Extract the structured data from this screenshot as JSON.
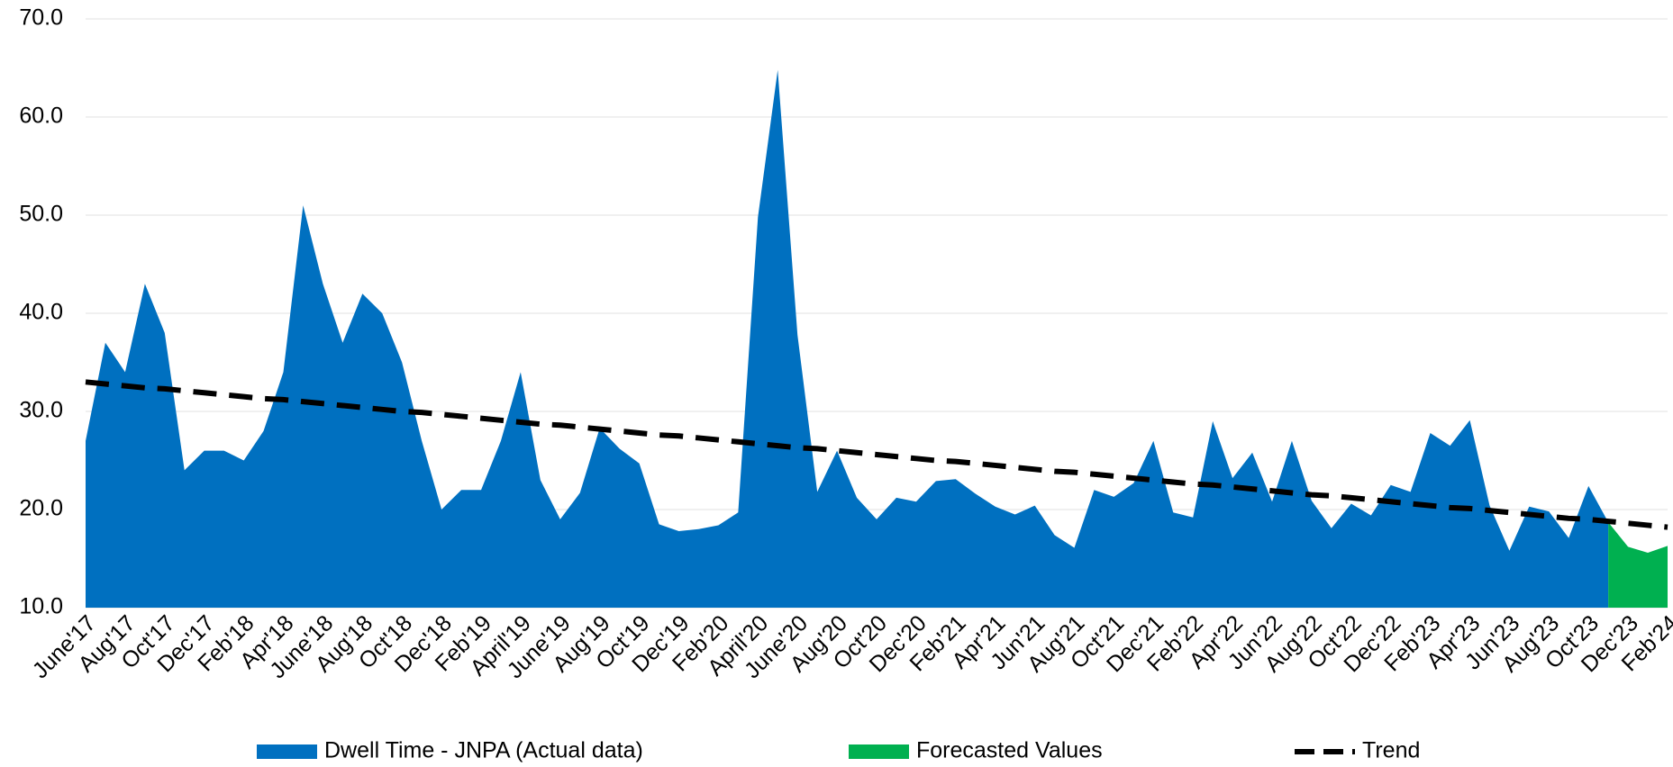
{
  "chart_data": {
    "type": "area",
    "categories": [
      "June'17",
      null,
      "Aug'17",
      null,
      "Oct'17",
      null,
      "Dec'17",
      null,
      "Feb'18",
      null,
      "Apr'18",
      null,
      "June'18",
      null,
      "Aug'18",
      null,
      "Oct'18",
      null,
      "Dec'18",
      null,
      "Feb'19",
      null,
      "April'19",
      null,
      "June'19",
      null,
      "Aug'19",
      null,
      "Oct'19",
      null,
      "Dec'19",
      null,
      "Feb'20",
      null,
      "April'20",
      null,
      "June'20",
      null,
      "Aug'20",
      null,
      "Oct'20",
      null,
      "Dec'20",
      null,
      "Feb'21",
      null,
      "Apr'21",
      null,
      "Jun'21",
      null,
      "Aug'21",
      null,
      "Oct'21",
      null,
      "Dec'21",
      null,
      "Feb'22",
      null,
      "Apr'22",
      null,
      "Jun'22",
      null,
      "Aug'22",
      null,
      "Oct'22",
      null,
      "Dec'22",
      null,
      "Feb'23",
      null,
      "Apr'23",
      null,
      "Jun'23",
      null,
      "Aug'23",
      null,
      "Oct'23",
      null,
      "Dec'23",
      null,
      "Feb'24"
    ],
    "series": [
      {
        "name": "Dwell Time - JNPA (Actual data)",
        "color": "#0070c0",
        "values": [
          27,
          37,
          34,
          43,
          38,
          24,
          26,
          26,
          25,
          28,
          34,
          51,
          43,
          37,
          42,
          40,
          35,
          27,
          20,
          22,
          22,
          27,
          34,
          23,
          19,
          21.7,
          28.3,
          26.2,
          24.7,
          18.5,
          17.8,
          18,
          18.4,
          19.7,
          49.8,
          64.8,
          37.8,
          21.8,
          26,
          21.2,
          19,
          21.2,
          20.8,
          22.9,
          23.1,
          21.6,
          20.3,
          19.5,
          20.4,
          17.4,
          16.1,
          22,
          21.3,
          22.7,
          27,
          19.7,
          19.2,
          29,
          23.2,
          25.8,
          20.8,
          27,
          20.9,
          18.1,
          20.6,
          19.4,
          22.5,
          21.8,
          27.8,
          26.5,
          29.1,
          20.4,
          15.8,
          20.3,
          19.8,
          17.1,
          22.4,
          18.7,
          null,
          null,
          null
        ]
      },
      {
        "name": "Forecasted Values",
        "color": "#00b050",
        "values": [
          null,
          null,
          null,
          null,
          null,
          null,
          null,
          null,
          null,
          null,
          null,
          null,
          null,
          null,
          null,
          null,
          null,
          null,
          null,
          null,
          null,
          null,
          null,
          null,
          null,
          null,
          null,
          null,
          null,
          null,
          null,
          null,
          null,
          null,
          null,
          null,
          null,
          null,
          null,
          null,
          null,
          null,
          null,
          null,
          null,
          null,
          null,
          null,
          null,
          null,
          null,
          null,
          null,
          null,
          null,
          null,
          null,
          null,
          null,
          null,
          null,
          null,
          null,
          null,
          null,
          null,
          null,
          null,
          null,
          null,
          null,
          null,
          null,
          null,
          null,
          null,
          null,
          18.7,
          16.2,
          15.6,
          16.3
        ]
      },
      {
        "name": "Trend",
        "color": "#000000",
        "line": "dashed",
        "values": [
          33.0,
          32.8,
          32.6,
          32.4,
          32.3,
          32.1,
          31.9,
          31.7,
          31.5,
          31.3,
          31.2,
          31.0,
          30.8,
          30.6,
          30.4,
          30.2,
          30.0,
          29.9,
          29.7,
          29.5,
          29.3,
          29.1,
          28.9,
          28.7,
          28.6,
          28.4,
          28.2,
          28.0,
          27.8,
          27.6,
          27.5,
          27.3,
          27.1,
          26.9,
          26.7,
          26.5,
          26.3,
          26.2,
          26.0,
          25.8,
          25.6,
          25.4,
          25.2,
          25.0,
          24.9,
          24.7,
          24.5,
          24.3,
          24.1,
          23.9,
          23.8,
          23.6,
          23.4,
          23.2,
          23.0,
          22.8,
          22.6,
          22.5,
          22.3,
          22.1,
          21.9,
          21.7,
          21.5,
          21.4,
          21.2,
          21.0,
          20.8,
          20.6,
          20.4,
          20.2,
          20.1,
          19.9,
          19.7,
          19.5,
          19.3,
          19.1,
          19.0,
          18.8,
          18.6,
          18.4,
          18.2
        ]
      }
    ],
    "ylim": [
      10,
      70
    ],
    "yticks": [
      {
        "value": 10,
        "label": "10.0"
      },
      {
        "value": 20,
        "label": "20.0"
      },
      {
        "value": 30,
        "label": "30.0"
      },
      {
        "value": 40,
        "label": "40.0"
      },
      {
        "value": 50,
        "label": "50.0"
      },
      {
        "value": 60,
        "label": "60.0"
      },
      {
        "value": 70,
        "label": "70.0"
      }
    ],
    "grid": true,
    "legend": "bottom"
  }
}
